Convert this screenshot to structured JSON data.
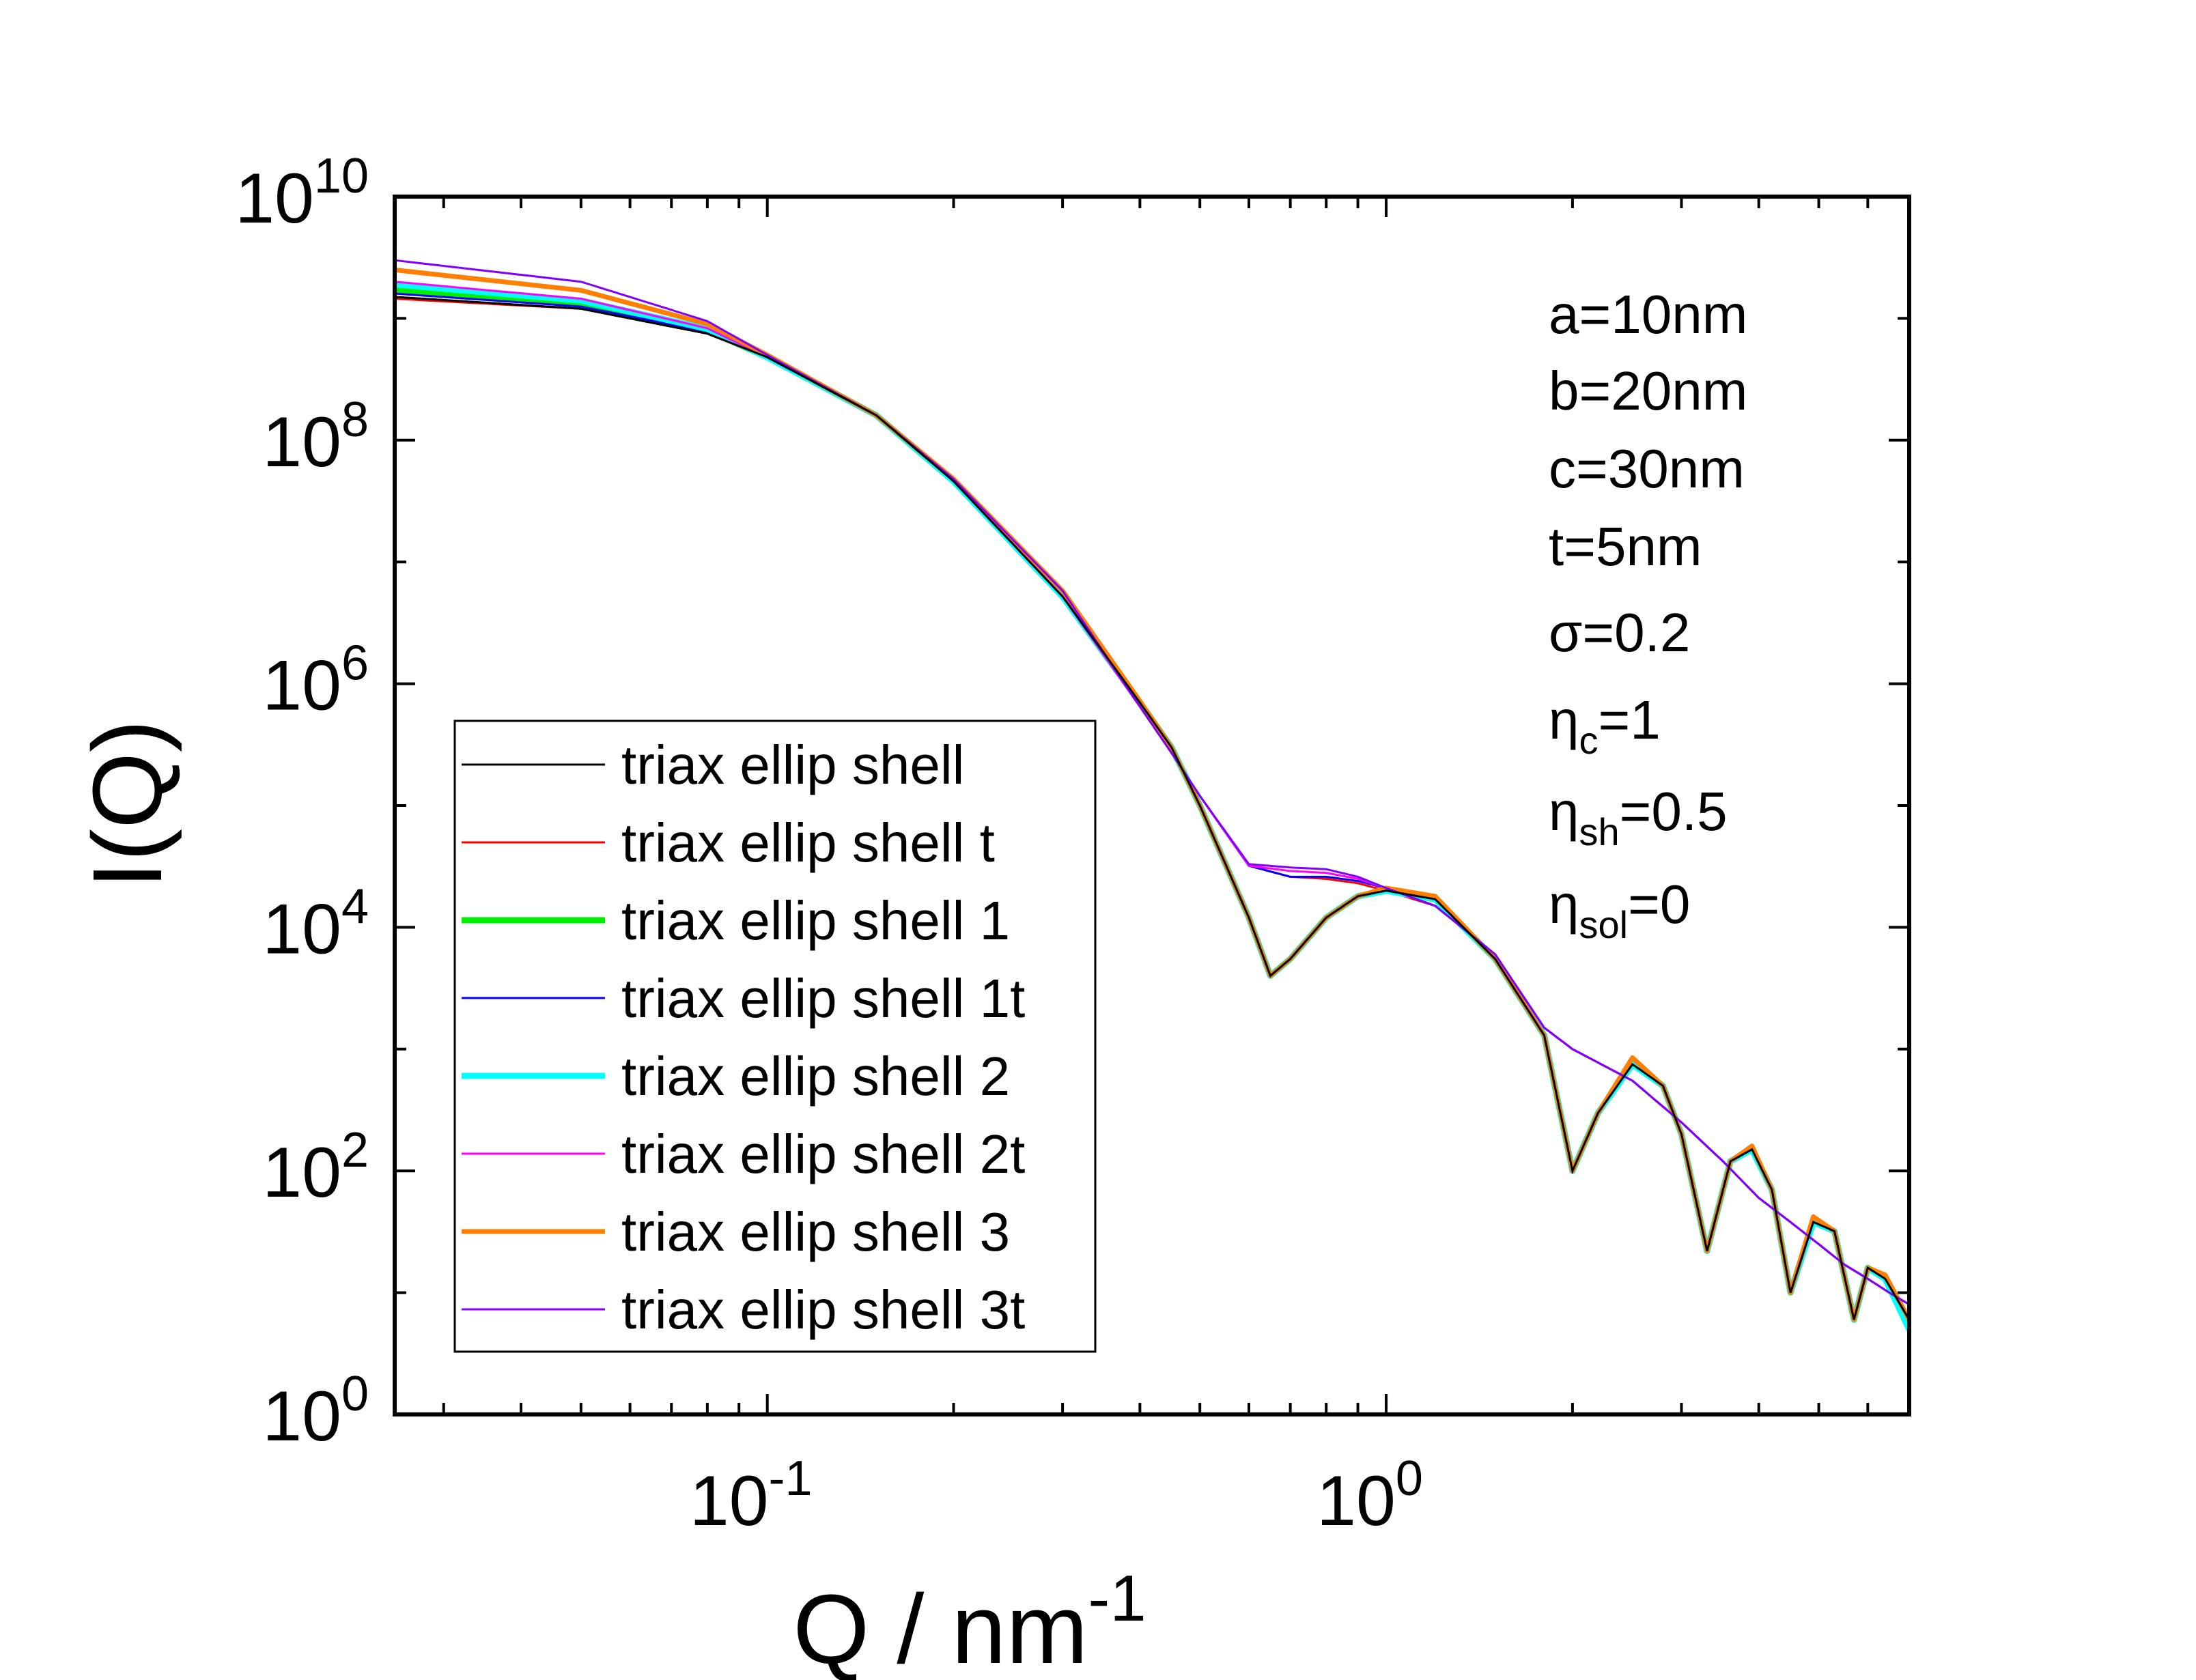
{
  "chart_data": {
    "type": "line",
    "xscale": "log",
    "yscale": "log",
    "xlim": [
      0.025,
      7.0
    ],
    "ylim": [
      1,
      10000000000
    ],
    "grid": false,
    "legend_position": "bottom-left",
    "xlabel": {
      "main": "Q / nm",
      "sup": "-1"
    },
    "ylabel": "I(Q)",
    "x_ticks": [
      {
        "value": 0.1,
        "base": "10",
        "exp": "-1"
      },
      {
        "value": 1,
        "base": "10",
        "exp": "0"
      }
    ],
    "y_ticks": [
      {
        "value": 1,
        "base": "10",
        "exp": "0"
      },
      {
        "value": 100,
        "base": "10",
        "exp": "2"
      },
      {
        "value": 10000,
        "base": "10",
        "exp": "4"
      },
      {
        "value": 1000000,
        "base": "10",
        "exp": "6"
      },
      {
        "value": 100000000,
        "base": "10",
        "exp": "8"
      },
      {
        "value": 10000000000,
        "base": "10",
        "exp": "10"
      }
    ],
    "annotations": [
      {
        "text": "a=10nm"
      },
      {
        "text": "b=20nm"
      },
      {
        "text": "c=30nm"
      },
      {
        "text": "t=5nm"
      },
      {
        "text": "σ=0.2"
      },
      {
        "text": "η",
        "sub": "c",
        "rest": "=1"
      },
      {
        "text": "η",
        "sub": "sh",
        "rest": "=0.5"
      },
      {
        "text": "η",
        "sub": "sol",
        "rest": "=0"
      }
    ],
    "series": [
      {
        "name": "triax ellip shell",
        "color": "#000000",
        "width": 3,
        "i0": 1500000000,
        "family": "A",
        "points": [
          [
            0.025,
            1500000000.0
          ],
          [
            0.05,
            1200000000.0
          ],
          [
            0.08,
            750000000.0
          ],
          [
            0.1,
            480000000.0
          ],
          [
            0.15,
            160000000.0
          ],
          [
            0.2,
            46000000.0
          ],
          [
            0.3,
            5200000.0
          ],
          [
            0.4,
            700000.0
          ],
          [
            0.45,
            300000.0
          ],
          [
            0.5,
            100000.0
          ],
          [
            0.6,
            12000.0
          ],
          [
            0.65,
            4000.0
          ],
          [
            0.7,
            5500.0
          ],
          [
            0.8,
            12000.0
          ],
          [
            0.9,
            18000.0
          ],
          [
            1.0,
            20000.0
          ],
          [
            1.2,
            17000.0
          ],
          [
            1.5,
            5500.0
          ],
          [
            1.8,
            1300.0
          ],
          [
            2.0,
            100.0
          ],
          [
            2.2,
            300.0
          ],
          [
            2.5,
            750.0
          ],
          [
            2.8,
            500.0
          ],
          [
            3.0,
            200.0
          ],
          [
            3.3,
            22.0
          ],
          [
            3.6,
            120.0
          ],
          [
            3.9,
            150.0
          ],
          [
            4.2,
            70.0
          ],
          [
            4.5,
            10.0
          ],
          [
            4.9,
            38.0
          ],
          [
            5.3,
            32.0
          ],
          [
            5.7,
            6.0
          ],
          [
            6.0,
            16.0
          ],
          [
            6.4,
            13.0
          ],
          [
            7.0,
            6.0
          ]
        ]
      },
      {
        "name": "triax ellip shell t",
        "color": "#ff0000",
        "width": 3,
        "i0": 1450000000,
        "family": "B",
        "points": [
          [
            0.025,
            1450000000.0
          ],
          [
            0.05,
            1200000000.0
          ],
          [
            0.08,
            750000000.0
          ],
          [
            0.1,
            480000000.0
          ],
          [
            0.15,
            160000000.0
          ],
          [
            0.2,
            46000000.0
          ],
          [
            0.3,
            5200000.0
          ],
          [
            0.4,
            650000.0
          ],
          [
            0.45,
            270000.0
          ],
          [
            0.5,
            120000.0
          ],
          [
            0.6,
            32000.0
          ],
          [
            0.7,
            26000.0
          ],
          [
            0.8,
            25000.0
          ],
          [
            0.9,
            23000.0
          ],
          [
            1.0,
            20000.0
          ],
          [
            1.2,
            15000.0
          ],
          [
            1.5,
            6000.0
          ],
          [
            1.8,
            1500.0
          ],
          [
            2.0,
            1000.0
          ],
          [
            2.5,
            550.0
          ],
          [
            3.0,
            250.0
          ],
          [
            3.5,
            120.0
          ],
          [
            4.0,
            60.0
          ],
          [
            4.5,
            38.0
          ],
          [
            5.0,
            25.0
          ],
          [
            5.5,
            17.0
          ],
          [
            6.0,
            13.0
          ],
          [
            6.5,
            10.0
          ],
          [
            7.0,
            8.0
          ]
        ]
      },
      {
        "name": "triax ellip shell 1",
        "color": "#00ee00",
        "width": 9,
        "i0": 1700000000,
        "family": "A",
        "points": [
          [
            0.025,
            1700000000.0
          ],
          [
            0.05,
            1300000000.0
          ],
          [
            0.08,
            800000000.0
          ],
          [
            0.1,
            480000000.0
          ],
          [
            0.15,
            160000000.0
          ],
          [
            0.2,
            46000000.0
          ],
          [
            0.3,
            5200000.0
          ],
          [
            0.4,
            700000.0
          ],
          [
            0.45,
            300000.0
          ],
          [
            0.5,
            100000.0
          ],
          [
            0.6,
            12000.0
          ],
          [
            0.65,
            4000.0
          ],
          [
            0.7,
            5500.0
          ],
          [
            0.8,
            12000.0
          ],
          [
            0.9,
            18000.0
          ],
          [
            1.0,
            20000.0
          ],
          [
            1.2,
            17000.0
          ],
          [
            1.5,
            5500.0
          ],
          [
            1.8,
            1300.0
          ],
          [
            2.0,
            100.0
          ],
          [
            2.2,
            300.0
          ],
          [
            2.5,
            750.0
          ],
          [
            2.8,
            500.0
          ],
          [
            3.0,
            200.0
          ],
          [
            3.3,
            22.0
          ],
          [
            3.6,
            120.0
          ],
          [
            3.9,
            150.0
          ],
          [
            4.2,
            70.0
          ],
          [
            4.5,
            10.0
          ],
          [
            4.9,
            38.0
          ],
          [
            5.3,
            32.0
          ],
          [
            5.7,
            6.0
          ],
          [
            6.0,
            16.0
          ],
          [
            6.4,
            13.0
          ],
          [
            7.0,
            5.0
          ]
        ]
      },
      {
        "name": "triax ellip shell 1t",
        "color": "#0000ff",
        "width": 3,
        "i0": 1600000000,
        "family": "B",
        "points": [
          [
            0.025,
            1600000000.0
          ],
          [
            0.05,
            1250000000.0
          ],
          [
            0.08,
            780000000.0
          ],
          [
            0.1,
            480000000.0
          ],
          [
            0.15,
            160000000.0
          ],
          [
            0.2,
            46000000.0
          ],
          [
            0.3,
            5200000.0
          ],
          [
            0.4,
            650000.0
          ],
          [
            0.45,
            270000.0
          ],
          [
            0.5,
            120000.0
          ],
          [
            0.6,
            32000.0
          ],
          [
            0.7,
            26000.0
          ],
          [
            0.8,
            26000.0
          ],
          [
            0.9,
            24000.0
          ],
          [
            1.0,
            21000.0
          ],
          [
            1.2,
            15000.0
          ],
          [
            1.5,
            6000.0
          ],
          [
            1.8,
            1500.0
          ],
          [
            2.0,
            1000.0
          ],
          [
            2.5,
            550.0
          ],
          [
            3.0,
            250.0
          ],
          [
            3.5,
            120.0
          ],
          [
            4.0,
            60.0
          ],
          [
            4.5,
            38.0
          ],
          [
            5.0,
            25.0
          ],
          [
            5.5,
            17.0
          ],
          [
            6.0,
            13.0
          ],
          [
            6.5,
            10.0
          ],
          [
            7.0,
            8.0
          ]
        ]
      },
      {
        "name": "triax ellip shell 2",
        "color": "#00ffff",
        "width": 9,
        "i0": 1900000000,
        "family": "A",
        "points": [
          [
            0.025,
            1900000000.0
          ],
          [
            0.05,
            1400000000.0
          ],
          [
            0.08,
            820000000.0
          ],
          [
            0.1,
            480000000.0
          ],
          [
            0.15,
            160000000.0
          ],
          [
            0.2,
            46000000.0
          ],
          [
            0.3,
            5200000.0
          ],
          [
            0.4,
            700000.0
          ],
          [
            0.45,
            300000.0
          ],
          [
            0.5,
            100000.0
          ],
          [
            0.6,
            12000.0
          ],
          [
            0.65,
            4000.0
          ],
          [
            0.7,
            5500.0
          ],
          [
            0.8,
            12000.0
          ],
          [
            0.9,
            18000.0
          ],
          [
            1.0,
            20000.0
          ],
          [
            1.2,
            17000.0
          ],
          [
            1.5,
            5500.0
          ],
          [
            1.8,
            1300.0
          ],
          [
            2.0,
            100.0
          ],
          [
            2.2,
            300.0
          ],
          [
            2.5,
            750.0
          ],
          [
            2.8,
            500.0
          ],
          [
            3.0,
            200.0
          ],
          [
            3.3,
            22.0
          ],
          [
            3.6,
            120.0
          ],
          [
            3.9,
            150.0
          ],
          [
            4.2,
            70.0
          ],
          [
            4.5,
            10.0
          ],
          [
            4.9,
            38.0
          ],
          [
            5.3,
            32.0
          ],
          [
            5.7,
            6.0
          ],
          [
            6.0,
            16.0
          ],
          [
            6.4,
            13.0
          ],
          [
            7.0,
            5.0
          ]
        ]
      },
      {
        "name": "triax ellip shell 2t",
        "color": "#ff00ff",
        "width": 3,
        "i0": 2000000000,
        "family": "B",
        "points": [
          [
            0.025,
            2000000000.0
          ],
          [
            0.05,
            1450000000.0
          ],
          [
            0.08,
            830000000.0
          ],
          [
            0.1,
            480000000.0
          ],
          [
            0.15,
            160000000.0
          ],
          [
            0.2,
            46000000.0
          ],
          [
            0.3,
            5200000.0
          ],
          [
            0.4,
            650000.0
          ],
          [
            0.45,
            270000.0
          ],
          [
            0.5,
            120000.0
          ],
          [
            0.6,
            32000.0
          ],
          [
            0.7,
            29000.0
          ],
          [
            0.8,
            28000.0
          ],
          [
            0.9,
            25000.0
          ],
          [
            1.0,
            21000.0
          ],
          [
            1.2,
            15000.0
          ],
          [
            1.5,
            6000.0
          ],
          [
            1.8,
            1500.0
          ],
          [
            2.0,
            1000.0
          ],
          [
            2.5,
            550.0
          ],
          [
            3.0,
            250.0
          ],
          [
            3.5,
            120.0
          ],
          [
            4.0,
            60.0
          ],
          [
            4.5,
            38.0
          ],
          [
            5.0,
            25.0
          ],
          [
            5.5,
            17.0
          ],
          [
            6.0,
            13.0
          ],
          [
            6.5,
            10.0
          ],
          [
            7.0,
            8.0
          ]
        ]
      },
      {
        "name": "triax ellip shell 3",
        "color": "#ff8000",
        "width": 7,
        "i0": 2500000000,
        "family": "A",
        "points": [
          [
            0.025,
            2500000000.0
          ],
          [
            0.05,
            1700000000.0
          ],
          [
            0.08,
            900000000.0
          ],
          [
            0.1,
            500000000.0
          ],
          [
            0.15,
            160000000.0
          ],
          [
            0.2,
            48000000.0
          ],
          [
            0.3,
            5800000.0
          ],
          [
            0.4,
            720000.0
          ],
          [
            0.45,
            300000.0
          ],
          [
            0.5,
            100000.0
          ],
          [
            0.6,
            12000.0
          ],
          [
            0.65,
            4000.0
          ],
          [
            0.7,
            5500.0
          ],
          [
            0.8,
            12000.0
          ],
          [
            0.9,
            18000.0
          ],
          [
            1.0,
            21000.0
          ],
          [
            1.2,
            18000.0
          ],
          [
            1.5,
            5500.0
          ],
          [
            1.8,
            1300.0
          ],
          [
            2.0,
            100.0
          ],
          [
            2.2,
            300.0
          ],
          [
            2.5,
            850.0
          ],
          [
            2.8,
            500.0
          ],
          [
            3.0,
            200.0
          ],
          [
            3.3,
            22.0
          ],
          [
            3.6,
            120.0
          ],
          [
            3.9,
            160.0
          ],
          [
            4.2,
            70.0
          ],
          [
            4.5,
            10.0
          ],
          [
            4.9,
            42.0
          ],
          [
            5.3,
            32.0
          ],
          [
            5.7,
            6.0
          ],
          [
            6.0,
            16.0
          ],
          [
            6.4,
            14.0
          ],
          [
            7.0,
            6.0
          ]
        ]
      },
      {
        "name": "triax ellip shell 3t",
        "color": "#8000ff",
        "width": 3,
        "i0": 3000000000,
        "family": "B",
        "points": [
          [
            0.025,
            3000000000.0
          ],
          [
            0.05,
            2000000000.0
          ],
          [
            0.08,
            950000000.0
          ],
          [
            0.1,
            500000000.0
          ],
          [
            0.15,
            160000000.0
          ],
          [
            0.2,
            48000000.0
          ],
          [
            0.3,
            5800000.0
          ],
          [
            0.4,
            650000.0
          ],
          [
            0.45,
            270000.0
          ],
          [
            0.5,
            120000.0
          ],
          [
            0.6,
            33000.0
          ],
          [
            0.7,
            31000.0
          ],
          [
            0.8,
            30000.0
          ],
          [
            0.9,
            26000.0
          ],
          [
            1.0,
            21000.0
          ],
          [
            1.2,
            15000.0
          ],
          [
            1.5,
            6000.0
          ],
          [
            1.8,
            1500.0
          ],
          [
            2.0,
            1000.0
          ],
          [
            2.5,
            550.0
          ],
          [
            3.0,
            250.0
          ],
          [
            3.5,
            120.0
          ],
          [
            4.0,
            60.0
          ],
          [
            4.5,
            38.0
          ],
          [
            5.0,
            25.0
          ],
          [
            5.5,
            17.0
          ],
          [
            6.0,
            13.0
          ],
          [
            6.5,
            10.0
          ],
          [
            7.0,
            8.0
          ]
        ]
      }
    ]
  }
}
